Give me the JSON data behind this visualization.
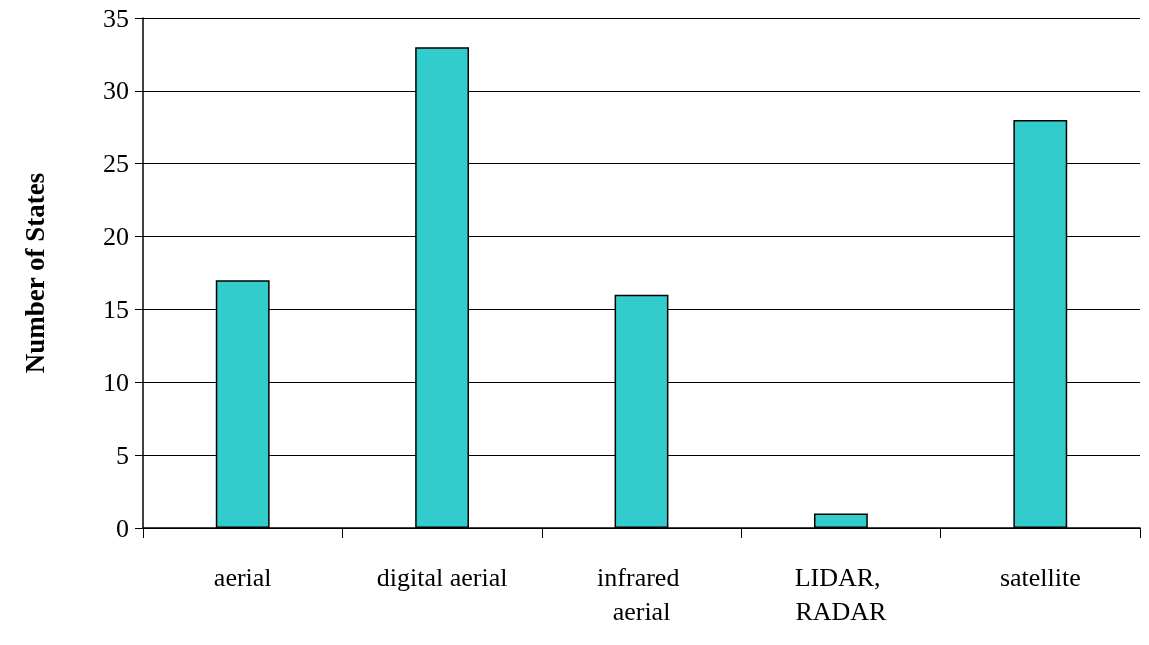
{
  "chart_data": {
    "type": "bar",
    "ylabel": "Number of States",
    "categories": [
      "aerial",
      "digital aerial",
      "infrared aerial",
      "LIDAR, RADAR",
      "satellite"
    ],
    "values": [
      17,
      33,
      16,
      1,
      28
    ],
    "color": "#33cccc",
    "ylim": [
      0,
      35
    ],
    "yticks": [
      0,
      5,
      10,
      15,
      20,
      25,
      30,
      35
    ],
    "grid": "y"
  }
}
